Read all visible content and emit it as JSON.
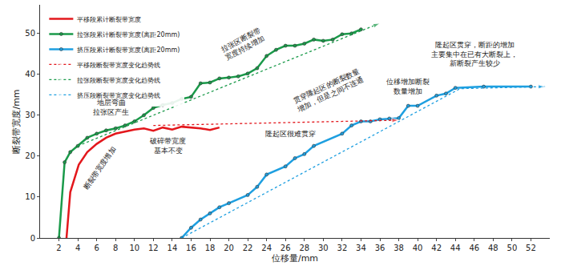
{
  "chart_data": {
    "type": "line",
    "x_label": "位移量/mm",
    "y_label": "断裂带宽度/mm",
    "xlim": [
      0,
      54
    ],
    "xticks": [
      2,
      4,
      6,
      8,
      10,
      12,
      14,
      16,
      18,
      20,
      22,
      24,
      26,
      28,
      30,
      32,
      34,
      36,
      38,
      40,
      42,
      44,
      46,
      48,
      50,
      52
    ],
    "ylim": [
      0,
      57
    ],
    "yticks": [
      0,
      10,
      20,
      30,
      40,
      50
    ],
    "grid": false,
    "legend": "upper left",
    "series": [
      {
        "name": "平移段累计断裂带宽度",
        "color": "#e3171c",
        "line_style": "solid",
        "marker": "none",
        "x": [
          2.8,
          3.2,
          4.1,
          5,
          6,
          7,
          8,
          9,
          10,
          11,
          12,
          13,
          14,
          15,
          16,
          17,
          18,
          19
        ],
        "values": [
          0,
          11.2,
          17.9,
          21,
          23,
          24.5,
          25.5,
          26,
          26.5,
          26.8,
          26.2,
          27,
          26.5,
          27.2,
          27,
          26.8,
          26.4,
          27
        ]
      },
      {
        "name": "拉张段累计断裂带宽度(离距20mm)",
        "color": "#1a9a4a",
        "line_style": "solid",
        "marker": "circle",
        "x": [
          2.0,
          2.6,
          3.2,
          4,
          5,
          6,
          7,
          8,
          9,
          10,
          11,
          12,
          13,
          14,
          15,
          16,
          17,
          18,
          19,
          20,
          21,
          22,
          23,
          24,
          25,
          26,
          27,
          28,
          29,
          30,
          31,
          32,
          33,
          34
        ],
        "values": [
          0,
          18.5,
          21,
          22.5,
          24.5,
          25.5,
          26.3,
          26.8,
          27.5,
          28.5,
          30,
          31.8,
          32.5,
          33,
          34,
          34.5,
          37.8,
          38,
          39,
          39.2,
          39.5,
          40.2,
          41.5,
          44.5,
          46,
          47,
          47,
          47.5,
          48.5,
          48.2,
          48.5,
          49.8,
          50,
          51
        ]
      },
      {
        "name": "挤压段累计断裂带宽度(离距20mm)",
        "color": "#1e9fe0",
        "line_style": "solid",
        "marker": "circle",
        "x": [
          15,
          16,
          17,
          18,
          19,
          20,
          22,
          23,
          24,
          26,
          27,
          28,
          29,
          32,
          33,
          34,
          35,
          36,
          37,
          38,
          39,
          40,
          42,
          43,
          44,
          47,
          52
        ],
        "values": [
          0,
          2.5,
          4.5,
          6,
          7.5,
          8.5,
          10.5,
          12.5,
          15.5,
          17.5,
          19.5,
          20.5,
          22.5,
          25.5,
          27.5,
          28.5,
          28.5,
          29,
          29.2,
          29.3,
          32.3,
          32.3,
          34.8,
          35.3,
          36.7,
          37,
          37
        ]
      },
      {
        "name": "平移段断裂带宽度变化趋势线",
        "color": "#e3171c",
        "line_style": "dotted",
        "marker": "arrow",
        "x": [
          12,
          38
        ],
        "values": [
          27.5,
          28.8
        ]
      },
      {
        "name": "拉张段断裂带宽度变化趋势线",
        "color": "#1a9a4a",
        "line_style": "dotted",
        "marker": "arrow",
        "x": [
          4,
          36
        ],
        "values": [
          22.5,
          52.5
        ]
      },
      {
        "name": "挤压段断裂带宽度变化趋势线",
        "color": "#1e9fe0",
        "line_style": "dotted",
        "marker": "arrow",
        "x": [
          15,
          44.5,
          53.5
        ],
        "values": [
          0,
          36.5,
          37
        ]
      }
    ],
    "annotations": [
      [
        "地层弯曲",
        "拉张区产生"
      ],
      [
        "断裂带宽度增加"
      ],
      [
        "破碎带宽度",
        "基本不变"
      ],
      [
        "拉张区断裂带",
        "宽度持续增加"
      ],
      [
        "隆起区很难贯穿"
      ],
      [
        "贯穿隆起区的断裂数量",
        "增加，但是之间不连通"
      ],
      [
        "位移增加断裂",
        "数量增加"
      ],
      [
        "隆起区贯穿，断距的增加",
        "主要集中在已有大断裂上，",
        "新断裂产生较少"
      ]
    ]
  }
}
